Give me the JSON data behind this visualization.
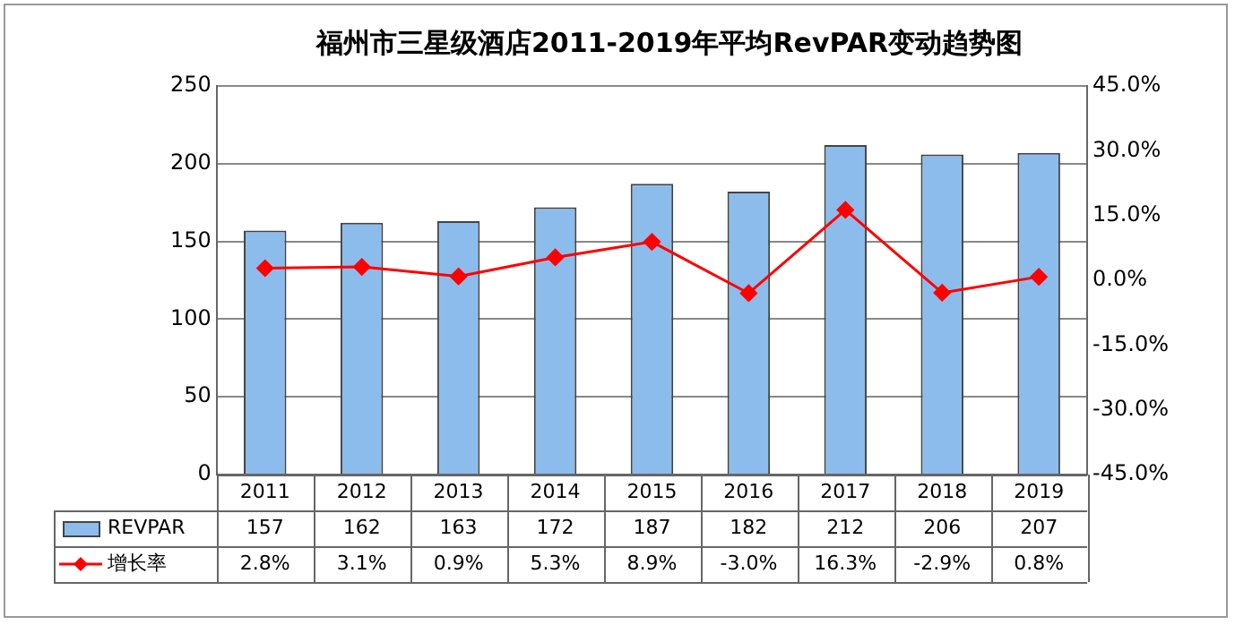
{
  "chart_data": {
    "type": "bar",
    "title": "福州市三星级酒店2011-2019年平均RevPAR变动趋势图",
    "categories": [
      "2011",
      "2012",
      "2013",
      "2014",
      "2015",
      "2016",
      "2017",
      "2018",
      "2019"
    ],
    "series": [
      {
        "name": "REVPAR",
        "color": "#8cbcec",
        "values": [
          157,
          162,
          163,
          172,
          187,
          182,
          212,
          206,
          207
        ],
        "value_labels": [
          "157",
          "162",
          "163",
          "172",
          "187",
          "182",
          "212",
          "206",
          "207"
        ]
      },
      {
        "name": "增长率",
        "type": "line",
        "axis": "y2",
        "color": "#ff0000",
        "marker": "diamond",
        "values": [
          2.8,
          3.1,
          0.9,
          5.3,
          8.9,
          -3.0,
          16.3,
          -2.9,
          0.8
        ],
        "value_labels": [
          "2.8%",
          "3.1%",
          "0.9%",
          "5.3%",
          "8.9%",
          "-3.0%",
          "16.3%",
          "-2.9%",
          "0.8%"
        ]
      }
    ],
    "ylim": [
      0,
      250
    ],
    "yticks": [
      0,
      50,
      100,
      150,
      200,
      250
    ],
    "y2lim": [
      -45,
      45
    ],
    "y2ticks": [
      {
        "value": -45,
        "label": "-45.0%"
      },
      {
        "value": -30,
        "label": "-30.0%"
      },
      {
        "value": -15,
        "label": "-15.0%"
      },
      {
        "value": 0,
        "label": "0.0%"
      },
      {
        "value": 15,
        "label": "15.0%"
      },
      {
        "value": 30,
        "label": "30.0%"
      },
      {
        "value": 45,
        "label": "45.0%"
      }
    ],
    "grid": "y",
    "legend": "bottom left"
  }
}
